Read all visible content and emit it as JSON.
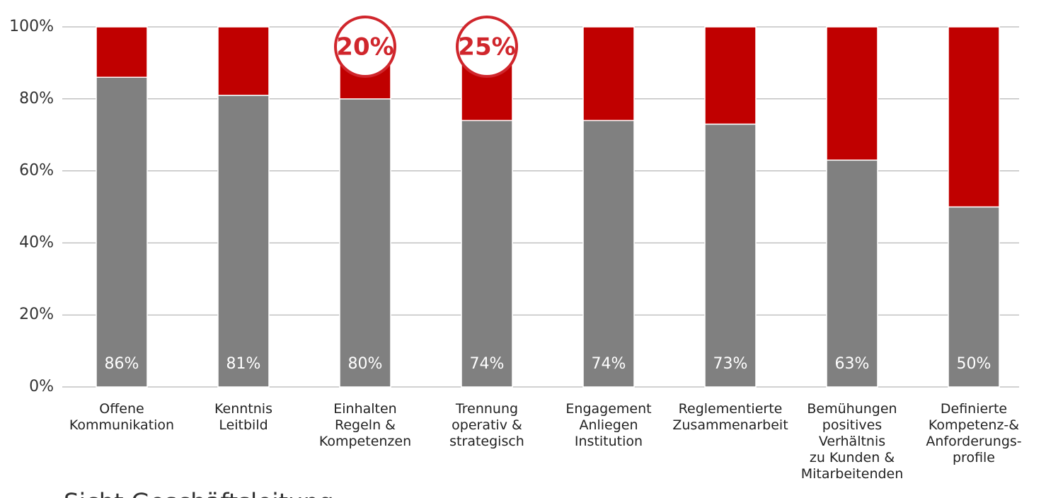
{
  "chart_data": {
    "type": "stacked_bar",
    "categories": [
      [
        "Offene",
        "Kommunikation"
      ],
      [
        "Kenntnis",
        "Leitbild"
      ],
      [
        "Einhalten",
        "Regeln &",
        "Kompetenzen"
      ],
      [
        "Trennung",
        "operativ &",
        "strategisch"
      ],
      [
        "Engagement",
        "Anliegen",
        "Institution"
      ],
      [
        "Reglementierte",
        "Zusammenarbeit"
      ],
      [
        "Bemühungen",
        "positives",
        "Verhältnis",
        "zu Kunden &",
        "Mitarbeitenden"
      ],
      [
        "Definierte",
        "Kompetenz-&",
        "Anforderungs-",
        "profile"
      ]
    ],
    "series": [
      {
        "color": "#808080",
        "values": [
          86,
          81,
          80,
          74,
          74,
          73,
          63,
          50
        ],
        "value_labels": [
          "86%",
          "81%",
          "80%",
          "74%",
          "74%",
          "73%",
          "63%",
          "50%"
        ]
      },
      {
        "color": "#c00000",
        "values": [
          14,
          19,
          20,
          25,
          26,
          27,
          37,
          50
        ],
        "value_labels": [
          null,
          null,
          "20%",
          "25%",
          null,
          null,
          null,
          null
        ]
      }
    ],
    "ylim": [
      0,
      100
    ],
    "yticks": [
      {
        "value": 0,
        "label": "0%"
      },
      {
        "value": 20,
        "label": "20%"
      },
      {
        "value": 40,
        "label": "40%"
      },
      {
        "value": 60,
        "label": "60%"
      },
      {
        "value": 80,
        "label": "80%"
      },
      {
        "value": 100,
        "label": "100%"
      }
    ],
    "grid": true,
    "subtitle": "Sicht Geschäftsleitung"
  }
}
